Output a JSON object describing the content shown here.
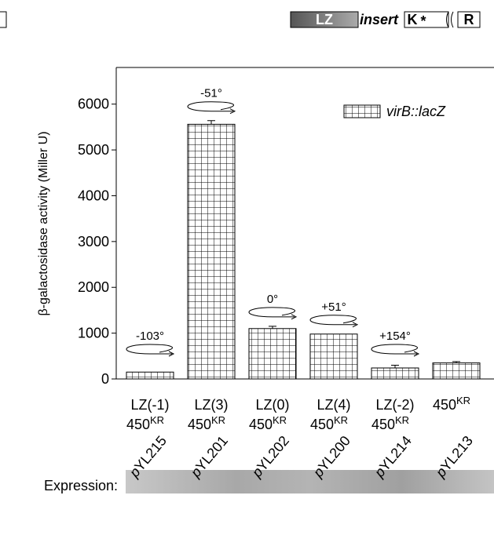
{
  "diagram": {
    "lz": "LZ",
    "insert": "insert",
    "k": "K",
    "stop": "*",
    "r": "R"
  },
  "chart_data": {
    "type": "bar",
    "ylabel": "β-galactosidase activity (Miller U)",
    "categories": [
      "LZ(-1)",
      "LZ(3)",
      "LZ(0)",
      "LZ(4)",
      "LZ(-2)",
      null
    ],
    "backbone": [
      "450",
      "450",
      "450",
      "450",
      "450",
      "450"
    ],
    "backbone_sup": [
      "KR",
      "KR",
      "KR",
      "KR",
      "KR",
      "KR"
    ],
    "plasmid_prefix": "p",
    "plasmids": [
      "YL215",
      "YL201",
      "YL202",
      "YL200",
      "YL214",
      "YL213"
    ],
    "angles": [
      "-103°",
      "-51°",
      "0°",
      "+51°",
      "+154°",
      null
    ],
    "series": [
      {
        "name": "virB::lacZ",
        "color": "#000000",
        "values": [
          150,
          5560,
          1100,
          980,
          240,
          350
        ],
        "errors": [
          0,
          80,
          50,
          0,
          60,
          30
        ]
      }
    ],
    "ylim": [
      0,
      6800
    ],
    "yticks": [
      0,
      1000,
      2000,
      3000,
      4000,
      5000,
      6000
    ],
    "legend": "upper right",
    "expression_label": "Expression:"
  }
}
